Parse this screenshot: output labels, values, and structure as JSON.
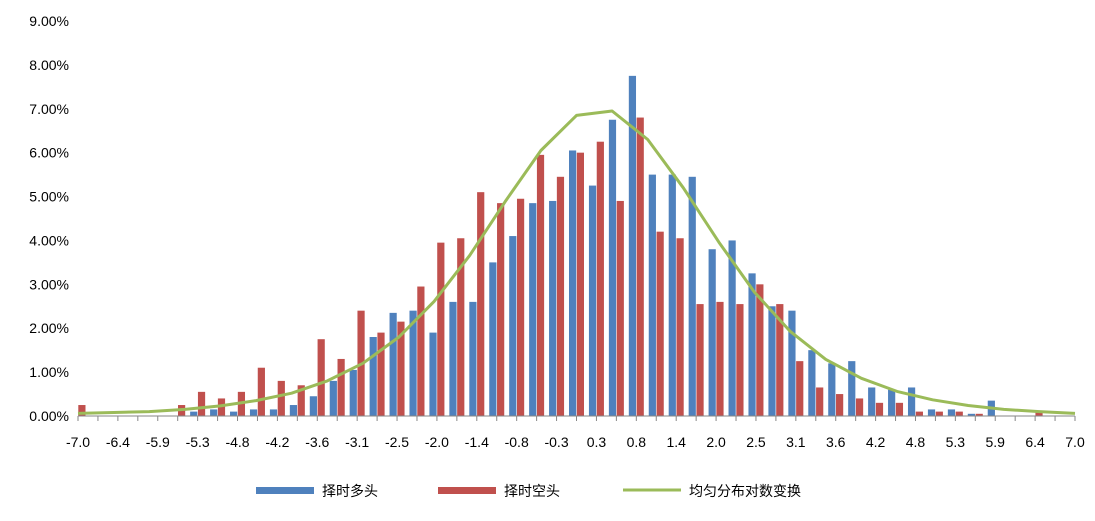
{
  "colors": {
    "long": "#4f81bd",
    "short": "#c0504d",
    "curve": "#9bbb59",
    "axis": "#868686"
  },
  "chart_data": {
    "type": "bar",
    "title": "",
    "xlabel": "",
    "ylabel": "",
    "ylim": [
      0,
      9
    ],
    "y_ticks": [
      "0.00%",
      "1.00%",
      "2.00%",
      "3.00%",
      "4.00%",
      "5.00%",
      "6.00%",
      "7.00%",
      "8.00%",
      "9.00%"
    ],
    "x_tick_labels": [
      "-7.0",
      "-6.4",
      "-5.9",
      "-5.3",
      "-4.8",
      "-4.2",
      "-3.6",
      "-3.1",
      "-2.5",
      "-2.0",
      "-1.4",
      "-0.8",
      "-0.3",
      "0.3",
      "0.8",
      "1.4",
      "2.0",
      "2.5",
      "3.1",
      "3.6",
      "4.2",
      "4.8",
      "5.3",
      "5.9",
      "6.4",
      "7.0"
    ],
    "x": [
      -7.0,
      -6.7,
      -6.4,
      -6.1,
      -5.9,
      -5.6,
      -5.3,
      -5.0,
      -4.8,
      -4.5,
      -4.2,
      -3.9,
      -3.6,
      -3.4,
      -3.1,
      -2.8,
      -2.5,
      -2.2,
      -2.0,
      -1.7,
      -1.4,
      -1.1,
      -0.8,
      -0.6,
      -0.3,
      0.0,
      0.3,
      0.6,
      0.8,
      1.1,
      1.4,
      1.7,
      2.0,
      2.2,
      2.5,
      2.8,
      3.1,
      3.4,
      3.6,
      3.9,
      4.2,
      4.5,
      4.8,
      5.0,
      5.3,
      5.6,
      5.9,
      6.1,
      6.4,
      6.7,
      7.0
    ],
    "series": [
      {
        "name": "择时多头",
        "type": "bar",
        "values": [
          0,
          0,
          0,
          0,
          0,
          0,
          0.1,
          0.15,
          0.1,
          0.15,
          0.15,
          0.25,
          0.45,
          0.8,
          1.05,
          1.8,
          2.35,
          2.4,
          1.9,
          2.6,
          2.6,
          3.5,
          4.1,
          4.85,
          4.9,
          6.05,
          5.25,
          6.75,
          7.75,
          5.5,
          5.5,
          5.45,
          3.8,
          4.0,
          3.25,
          2.5,
          2.4,
          1.5,
          1.2,
          1.25,
          0.65,
          0.6,
          0.65,
          0.15,
          0.15,
          0.05,
          0.35,
          0,
          0,
          0,
          0
        ]
      },
      {
        "name": "择时空头",
        "type": "bar",
        "values": [
          0.25,
          0,
          0,
          0,
          0,
          0.25,
          0.55,
          0.4,
          0.55,
          1.1,
          0.8,
          0.7,
          1.75,
          1.3,
          2.4,
          1.9,
          2.15,
          2.95,
          3.95,
          4.05,
          5.1,
          4.85,
          4.95,
          5.95,
          5.45,
          6.0,
          6.25,
          4.9,
          6.8,
          4.2,
          4.05,
          2.55,
          2.6,
          2.55,
          3.0,
          2.55,
          1.25,
          0.65,
          0.5,
          0.4,
          0.3,
          0.3,
          0.1,
          0.1,
          0.1,
          0.05,
          0,
          0,
          0.1,
          0,
          0
        ]
      },
      {
        "name": "均匀分布对数变换",
        "type": "line",
        "x": [
          -7.0,
          -6.5,
          -6.0,
          -5.5,
          -5.0,
          -4.5,
          -4.0,
          -3.5,
          -3.0,
          -2.5,
          -2.0,
          -1.5,
          -1.0,
          -0.5,
          0.0,
          0.5,
          1.0,
          1.5,
          2.0,
          2.5,
          3.0,
          3.5,
          4.0,
          4.5,
          5.0,
          5.5,
          6.0,
          6.5,
          7.0
        ],
        "values": [
          0.06,
          0.08,
          0.1,
          0.15,
          0.23,
          0.35,
          0.52,
          0.8,
          1.2,
          1.79,
          2.61,
          3.66,
          4.89,
          6.05,
          6.85,
          6.95,
          6.3,
          5.2,
          3.96,
          2.82,
          1.93,
          1.29,
          0.86,
          0.56,
          0.37,
          0.24,
          0.15,
          0.1,
          0.06
        ]
      }
    ],
    "legend": [
      "择时多头",
      "择时空头",
      "均匀分布对数变换"
    ],
    "legend_position": "bottom",
    "grid": false
  }
}
